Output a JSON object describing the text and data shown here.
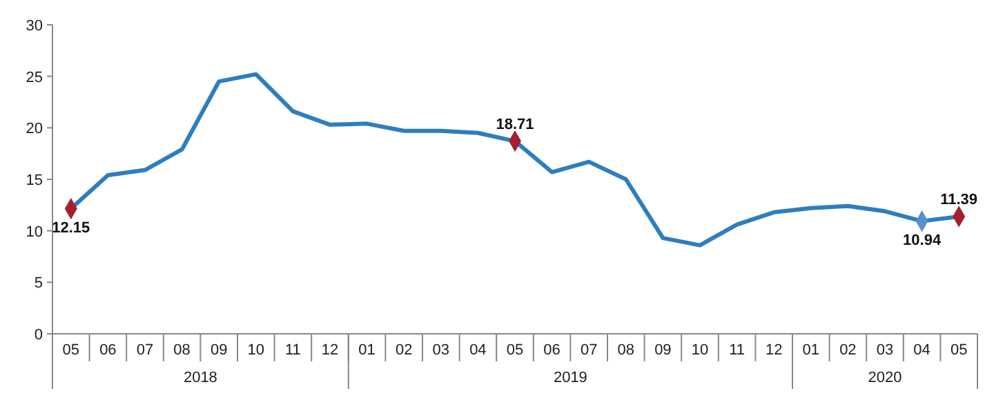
{
  "chart_data": {
    "type": "line",
    "categories": [
      "05",
      "06",
      "07",
      "08",
      "09",
      "10",
      "11",
      "12",
      "01",
      "02",
      "03",
      "04",
      "05",
      "06",
      "07",
      "08",
      "09",
      "10",
      "11",
      "12",
      "01",
      "02",
      "03",
      "04",
      "05"
    ],
    "series": [
      {
        "color": "#2e7ebf",
        "values": [
          12.15,
          15.4,
          15.9,
          17.9,
          24.5,
          25.2,
          21.6,
          20.3,
          20.4,
          19.7,
          19.7,
          19.5,
          18.71,
          15.7,
          16.7,
          15.0,
          9.3,
          8.6,
          10.6,
          11.8,
          12.2,
          12.4,
          11.9,
          10.94,
          11.39
        ]
      },
      {
        "type": "scatter",
        "marker": "diamond",
        "values": [
          12.15,
          null,
          null,
          null,
          null,
          null,
          null,
          null,
          null,
          null,
          null,
          null,
          18.71,
          null,
          null,
          null,
          null,
          null,
          null,
          null,
          null,
          null,
          null,
          10.94,
          11.39
        ],
        "colors": [
          "#a3212b",
          null,
          null,
          null,
          null,
          null,
          null,
          null,
          null,
          null,
          null,
          null,
          "#a3212b",
          null,
          null,
          null,
          null,
          null,
          null,
          null,
          null,
          null,
          null,
          "#5a8fcf",
          "#a3212b"
        ],
        "value_labels": [
          "12.15",
          null,
          null,
          null,
          null,
          null,
          null,
          null,
          null,
          null,
          null,
          null,
          "18.71",
          null,
          null,
          null,
          null,
          null,
          null,
          null,
          null,
          null,
          null,
          "10.94",
          "11.39"
        ]
      }
    ],
    "annotations": [
      "2018",
      "2019",
      "2020"
    ],
    "ylim": [
      0,
      30
    ],
    "yticks": [
      0,
      5,
      10,
      15,
      20,
      25,
      30
    ],
    "grid": false
  }
}
